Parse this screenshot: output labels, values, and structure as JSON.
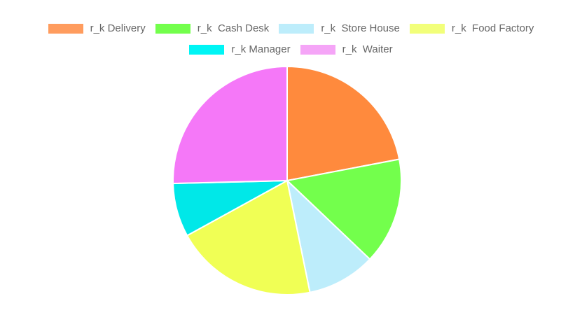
{
  "chart_data": {
    "type": "pie",
    "legend_position": "top",
    "labels": [
      "r_k Delivery",
      "r_k  Cash Desk",
      "r_k  Store House",
      "r_k  Food Factory",
      "r_k Manager",
      "r_k  Waiter"
    ],
    "values": [
      22.0,
      15.1,
      9.7,
      20.2,
      7.6,
      25.4
    ],
    "colors": [
      "#ff8a3d",
      "#73ff4c",
      "#bdedfb",
      "#f0ff55",
      "#00e8e8",
      "#f578f8"
    ],
    "legend_colors": [
      "#ff9c5e",
      "#73ff4c",
      "#bdedfb",
      "#f2ff7a",
      "#00f5f5",
      "#f5a5f7"
    ]
  }
}
